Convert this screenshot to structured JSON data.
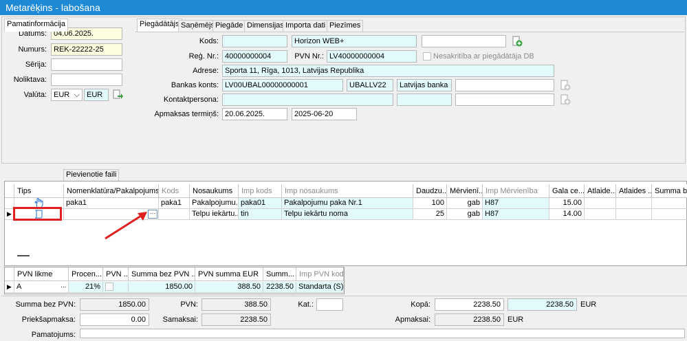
{
  "window": {
    "title": "Metarēķins - labošana"
  },
  "left": {
    "datums_label": "Datums:",
    "datums": "04.06.2025.",
    "numurs_label": "Numurs:",
    "numurs": "REK-22222-25",
    "serija_label": "Sērija:",
    "serija": "",
    "noliktava_label": "Noliktava:",
    "noliktava": "",
    "valuta_label": "Valūta:",
    "valuta": "EUR",
    "valuta2": "EUR"
  },
  "tabs": [
    "Piegādātājs",
    "Saņēmējs",
    "Piegāde",
    "Dimensijas",
    "Importa dati",
    "Piezīmes"
  ],
  "supplier": {
    "kods_label": "Kods:",
    "kods": "",
    "name": "Horizon WEB+",
    "extra": "",
    "reg_label": "Reģ. Nr.:",
    "reg": "40000000004",
    "pvn_label": "PVN Nr.:",
    "pvn": "LV40000000004",
    "nesakritiba": "Nesakritība ar piegādātāja DB",
    "adrese_label": "Adrese:",
    "adrese": "Sporta 11, Rīga, 1013, Latvijas Republika",
    "banka_label": "Bankas konts:",
    "konts": "LV00UBAL00000000001",
    "swift": "UBALLV22",
    "banka": "Latvijas banka",
    "kontakt_label": "Kontaktpersona:",
    "termins_label": "Apmaksas termiņš:",
    "termins": "20.06.2025.",
    "termins2": "2025-06-20"
  },
  "lower_tabs": [
    "Pamatinformācija",
    "Pievienotie faili"
  ],
  "grid": {
    "headers": [
      "Tips",
      "Nomenklatūra/Pakalpojums",
      "Kods",
      "Nosaukums",
      "Imp kods",
      "Imp nosaukums",
      "Daudzu...",
      "Mērvienī...",
      "Imp Mērvienība",
      "Gala ce...",
      "Atlaide...",
      "Atlaides ...",
      "Summa bez"
    ],
    "rows": [
      {
        "nomenklatura": "paka1",
        "kods": "paka1",
        "nosaukums": "Pakalpojumu...",
        "imp_kods": "paka01",
        "imp_nosaukums": "Pakalpojumu paka Nr.1",
        "daudzums": "100",
        "mervieniba": "gab",
        "imp_mervieniba": "H87",
        "cena": "15.00"
      },
      {
        "nomenklatura": "",
        "kods": "",
        "nosaukums": "Telpu iekārtu...",
        "imp_kods": "tin",
        "imp_nosaukums": "Telpu iekārtu noma",
        "daudzums": "25",
        "mervieniba": "gab",
        "imp_mervieniba": "H87",
        "cena": "14.00"
      }
    ]
  },
  "vat_grid": {
    "headers": [
      "PVN likme",
      "Procen...",
      "PVN ...",
      "Summa bez PVN ...",
      "PVN summa EUR",
      "Summ...",
      "Imp PVN kods"
    ],
    "row": {
      "likme": "A",
      "procents": "21%",
      "summa_bez": "1850.00",
      "pvn_summa": "388.50",
      "summa": "2238.50",
      "imp_kods": "Standarta (S)"
    }
  },
  "totals": {
    "summa_bez_label": "Summa bez PVN:",
    "summa_bez": "1850.00",
    "pvn_label": "PVN:",
    "pvn": "388.50",
    "kat_label": "Kat.:",
    "kat": "",
    "kopa_label": "Kopā:",
    "kopa": "2238.50",
    "kopa2": "2238.50",
    "kopa_cur": "EUR",
    "priekss_label": "Priekšapmaksa:",
    "priekss": "0.00",
    "samaksai_label": "Samaksai:",
    "samaksai": "2238.50",
    "apmaksai_label": "Apmaksai:",
    "apmaksai": "2238.50",
    "apmaksai_cur": "EUR",
    "pamatojums_label": "Pamatojums:"
  },
  "colors": {
    "titlebar": "#1e8ad6",
    "highlight_box": "#e02020",
    "arrow": "#e02020"
  }
}
